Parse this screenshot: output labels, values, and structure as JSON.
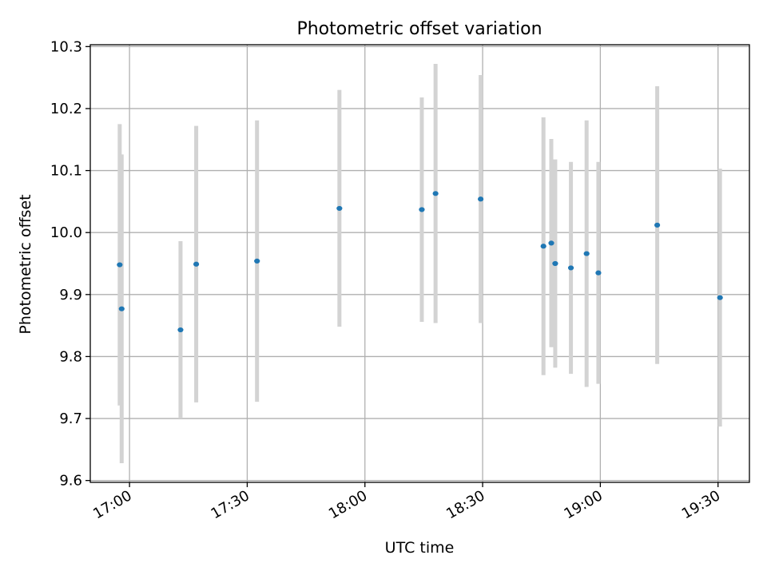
{
  "chart_data": {
    "type": "scatter",
    "title": "Photometric offset variation",
    "xlabel": "UTC time",
    "ylabel": "Photometric offset",
    "ylim": [
      9.597,
      10.303
    ],
    "xlim": [
      "16:50",
      "19:38"
    ],
    "grid": true,
    "legend": "none",
    "x_ticks": [
      "17:00",
      "17:30",
      "18:00",
      "18:30",
      "19:00",
      "19:30"
    ],
    "y_ticks": [
      "9.6",
      "9.7",
      "9.8",
      "9.9",
      "10.0",
      "10.1",
      "10.2",
      "10.3"
    ],
    "series": [
      {
        "points": [
          {
            "x": "16:57:30",
            "y": 9.948,
            "err": 0.227
          },
          {
            "x": "16:58:00",
            "y": 9.877,
            "err": 0.249
          },
          {
            "x": "17:13:00",
            "y": 9.843,
            "err": 0.143
          },
          {
            "x": "17:17:00",
            "y": 9.949,
            "err": 0.223
          },
          {
            "x": "17:32:30",
            "y": 9.954,
            "err": 0.227
          },
          {
            "x": "17:53:30",
            "y": 10.039,
            "err": 0.191
          },
          {
            "x": "18:14:30",
            "y": 10.037,
            "err": 0.181
          },
          {
            "x": "18:18:00",
            "y": 10.063,
            "err": 0.209
          },
          {
            "x": "18:29:30",
            "y": 10.054,
            "err": 0.2
          },
          {
            "x": "18:45:30",
            "y": 9.978,
            "err": 0.208
          },
          {
            "x": "18:47:30",
            "y": 9.983,
            "err": 0.168
          },
          {
            "x": "18:48:30",
            "y": 9.95,
            "err": 0.168
          },
          {
            "x": "18:52:30",
            "y": 9.943,
            "err": 0.171
          },
          {
            "x": "18:56:30",
            "y": 9.966,
            "err": 0.215
          },
          {
            "x": "18:59:30",
            "y": 9.935,
            "err": 0.179
          },
          {
            "x": "19:14:30",
            "y": 10.012,
            "err": 0.224
          },
          {
            "x": "19:30:30",
            "y": 9.895,
            "err": 0.208
          }
        ]
      }
    ]
  },
  "colors": {
    "marker": "#1f77b4",
    "errorbar": "#d3d3d3",
    "grid": "#b0b0b0"
  }
}
